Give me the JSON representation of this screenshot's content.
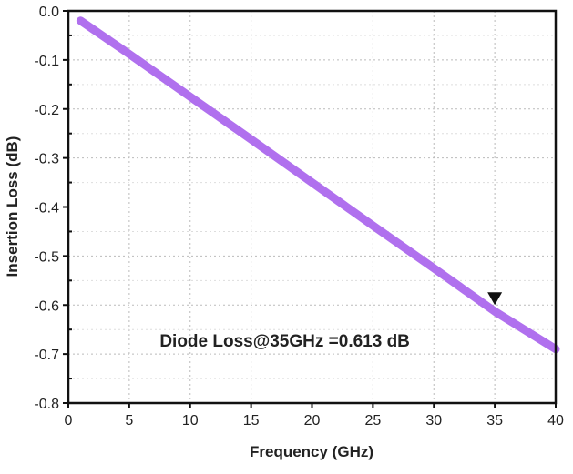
{
  "chart_data": {
    "type": "line",
    "title": "",
    "xlabel": "Frequency (GHz)",
    "ylabel": "Insertion Loss (dB)",
    "xlim": [
      0,
      40
    ],
    "ylim": [
      -0.8,
      0.0
    ],
    "xticks": [
      0,
      5,
      10,
      15,
      20,
      25,
      30,
      35,
      40
    ],
    "yticks": [
      0.0,
      -0.1,
      -0.2,
      -0.3,
      -0.4,
      -0.5,
      -0.6,
      -0.7,
      -0.8
    ],
    "xtick_labels": [
      "0",
      "5",
      "10",
      "15",
      "20",
      "25",
      "30",
      "35",
      "40"
    ],
    "ytick_labels": [
      "0.0",
      "-0.1",
      "-0.2",
      "-0.3",
      "-0.4",
      "-0.5",
      "-0.6",
      "-0.7",
      "-0.8"
    ],
    "grid": true,
    "series": [
      {
        "name": "Diode Loss",
        "color": "#b070ee",
        "x": [
          1,
          5,
          10,
          15,
          20,
          25,
          30,
          35,
          40
        ],
        "y": [
          -0.02,
          -0.088,
          -0.175,
          -0.262,
          -0.35,
          -0.438,
          -0.525,
          -0.613,
          -0.69
        ]
      }
    ],
    "marker": {
      "x": 35,
      "y": -0.6,
      "shape": "down-triangle"
    },
    "annotation": "Diode Loss@35GHz =0.613 dB",
    "annotation_pos": {
      "x": 7.5,
      "y": -0.685
    }
  }
}
